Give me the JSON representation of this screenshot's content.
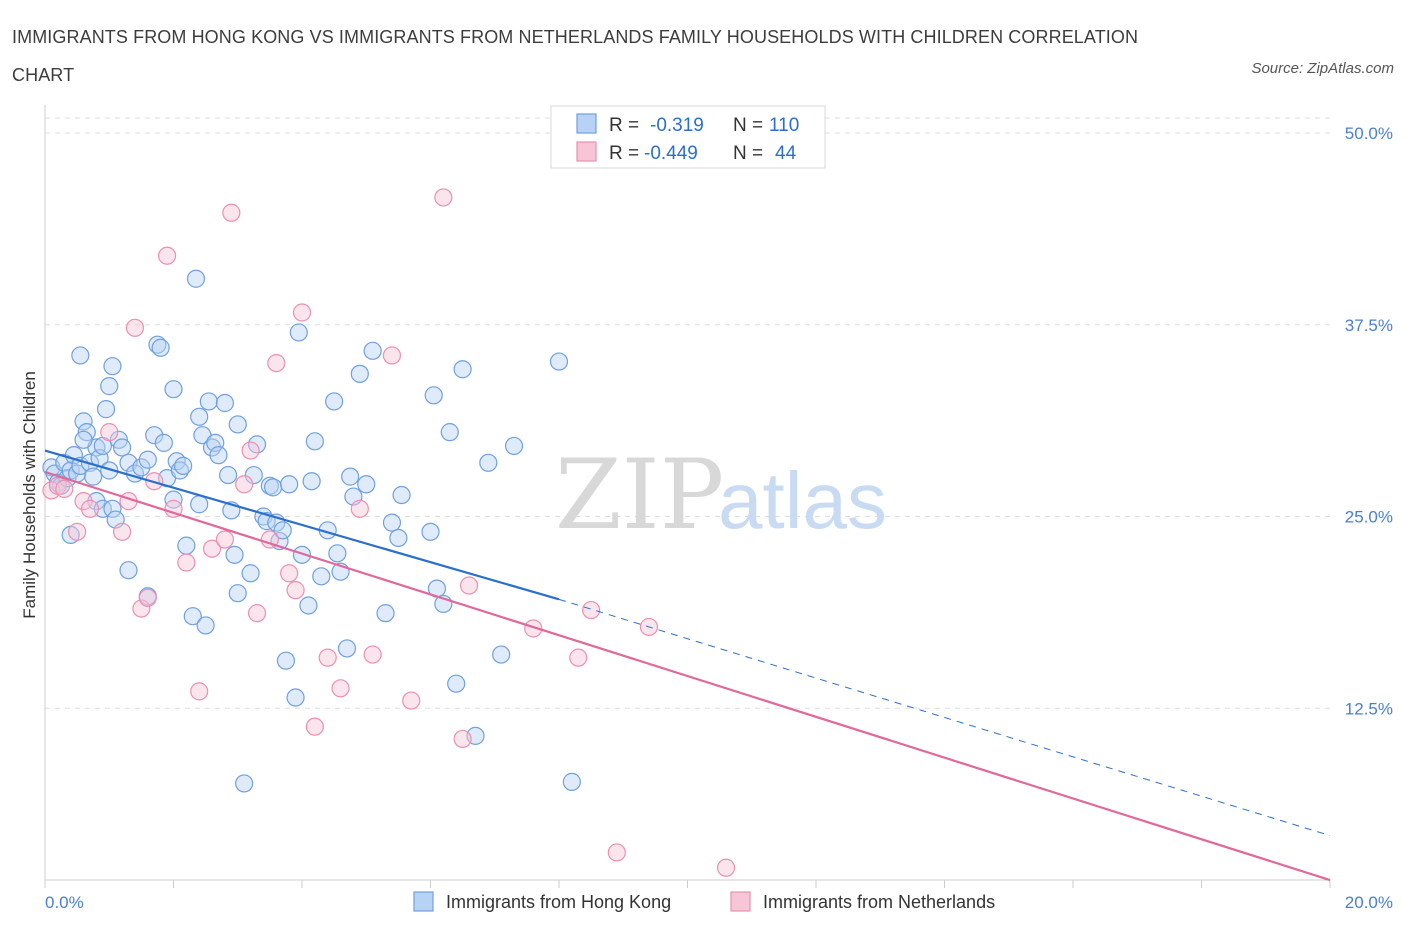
{
  "title": "IMMIGRANTS FROM HONG KONG VS IMMIGRANTS FROM NETHERLANDS FAMILY HOUSEHOLDS WITH CHILDREN CORRELATION CHART",
  "source": "Source: ZipAtlas.com",
  "watermark": {
    "zip": "ZIP",
    "atlas": "atlas"
  },
  "colors": {
    "blue": "#6fa0e0",
    "blue_fill": "#b8d2f5",
    "blue_line": "#2b6fcd",
    "pink": "#ec8fb0",
    "pink_fill": "#f7c6d6",
    "pink_line": "#e0689a",
    "axis_text": "#4a7fd0",
    "grid": "#dddddd"
  },
  "stats": [
    {
      "r_label": "R =",
      "r": "-0.319",
      "n_label": "N =",
      "n": "110"
    },
    {
      "r_label": "R =",
      "r": "-0.449",
      "n_label": "N =",
      "n": "44"
    }
  ],
  "chart_data": {
    "type": "scatter",
    "xlabel": "",
    "ylabel": "Family Households with Children",
    "xlim": [
      0,
      20
    ],
    "ylim": [
      0,
      50
    ],
    "x_tick_labels": [
      "0.0%",
      "20.0%"
    ],
    "y_ticks": [
      12.5,
      25.0,
      37.5,
      50.0
    ],
    "y_tick_labels": [
      "12.5%",
      "25.0%",
      "37.5%",
      "50.0%"
    ],
    "grid": true,
    "legend_position": "bottom-center",
    "series": [
      {
        "name": "Immigrants from Hong Kong",
        "color": "#6fa0e0",
        "trend": {
          "x0": 0,
          "y0": 29.3,
          "x1": 8.0,
          "y1": 19.6,
          "x_dash_end": 20.0,
          "y_dash_end": 4.2
        },
        "points": [
          [
            0.1,
            28.2
          ],
          [
            0.15,
            27.8
          ],
          [
            0.2,
            27.2
          ],
          [
            0.25,
            27.0
          ],
          [
            0.3,
            28.5
          ],
          [
            0.35,
            27.5
          ],
          [
            0.4,
            28.0
          ],
          [
            0.45,
            29.0
          ],
          [
            0.5,
            27.8
          ],
          [
            0.55,
            28.3
          ],
          [
            0.6,
            31.2
          ],
          [
            0.65,
            30.5
          ],
          [
            0.7,
            28.5
          ],
          [
            0.75,
            27.6
          ],
          [
            0.8,
            29.5
          ],
          [
            0.85,
            28.8
          ],
          [
            0.9,
            29.6
          ],
          [
            0.95,
            32.0
          ],
          [
            1.0,
            33.5
          ],
          [
            1.05,
            34.8
          ],
          [
            0.4,
            23.8
          ],
          [
            0.8,
            26.0
          ],
          [
            0.9,
            25.5
          ],
          [
            1.0,
            28.0
          ],
          [
            1.05,
            25.5
          ],
          [
            1.1,
            24.8
          ],
          [
            1.15,
            30.0
          ],
          [
            1.2,
            29.5
          ],
          [
            1.3,
            28.5
          ],
          [
            1.4,
            27.8
          ],
          [
            1.5,
            28.2
          ],
          [
            1.6,
            28.7
          ],
          [
            1.7,
            30.3
          ],
          [
            1.75,
            36.2
          ],
          [
            1.8,
            36.0
          ],
          [
            1.85,
            29.8
          ],
          [
            1.9,
            27.5
          ],
          [
            2.0,
            33.3
          ],
          [
            2.05,
            28.6
          ],
          [
            2.1,
            28.0
          ],
          [
            2.15,
            28.3
          ],
          [
            2.2,
            23.1
          ],
          [
            2.3,
            18.5
          ],
          [
            2.35,
            40.5
          ],
          [
            2.4,
            31.5
          ],
          [
            2.45,
            30.3
          ],
          [
            2.5,
            17.9
          ],
          [
            2.55,
            32.5
          ],
          [
            2.6,
            29.5
          ],
          [
            2.65,
            29.8
          ],
          [
            2.7,
            29.0
          ],
          [
            2.8,
            32.4
          ],
          [
            2.85,
            27.7
          ],
          [
            2.9,
            25.4
          ],
          [
            2.95,
            22.5
          ],
          [
            3.0,
            20.0
          ],
          [
            3.1,
            7.6
          ],
          [
            3.2,
            21.3
          ],
          [
            3.25,
            27.7
          ],
          [
            3.3,
            29.7
          ],
          [
            3.4,
            25.0
          ],
          [
            3.45,
            24.7
          ],
          [
            3.5,
            27.0
          ],
          [
            3.55,
            26.9
          ],
          [
            3.6,
            24.6
          ],
          [
            3.65,
            23.4
          ],
          [
            3.7,
            24.1
          ],
          [
            3.75,
            15.6
          ],
          [
            3.8,
            27.1
          ],
          [
            3.9,
            13.2
          ],
          [
            3.95,
            37.0
          ],
          [
            4.0,
            22.5
          ],
          [
            4.1,
            19.2
          ],
          [
            4.15,
            27.3
          ],
          [
            4.2,
            29.9
          ],
          [
            4.3,
            21.1
          ],
          [
            4.4,
            24.1
          ],
          [
            4.5,
            32.5
          ],
          [
            4.55,
            22.6
          ],
          [
            4.6,
            21.4
          ],
          [
            4.7,
            16.4
          ],
          [
            4.75,
            27.6
          ],
          [
            4.8,
            26.3
          ],
          [
            4.9,
            34.3
          ],
          [
            5.0,
            27.1
          ],
          [
            5.1,
            35.8
          ],
          [
            5.3,
            18.7
          ],
          [
            5.4,
            24.6
          ],
          [
            5.5,
            23.6
          ],
          [
            5.55,
            26.4
          ],
          [
            6.0,
            24.0
          ],
          [
            6.05,
            32.9
          ],
          [
            6.1,
            20.3
          ],
          [
            6.2,
            19.3
          ],
          [
            6.3,
            30.5
          ],
          [
            6.4,
            14.1
          ],
          [
            6.5,
            34.6
          ],
          [
            6.7,
            10.7
          ],
          [
            6.9,
            28.5
          ],
          [
            7.1,
            16.0
          ],
          [
            7.3,
            29.6
          ],
          [
            8.0,
            35.1
          ],
          [
            8.2,
            7.7
          ],
          [
            0.55,
            35.5
          ],
          [
            1.3,
            21.5
          ],
          [
            2.0,
            26.1
          ],
          [
            1.6,
            19.8
          ],
          [
            0.6,
            30.0
          ],
          [
            2.4,
            25.8
          ],
          [
            3.0,
            31.0
          ]
        ]
      },
      {
        "name": "Immigrants from Netherlands",
        "color": "#ec8fb0",
        "trend": {
          "x0": 0,
          "y0": 27.9,
          "x1": 20.0,
          "y1": 1.3
        },
        "points": [
          [
            0.1,
            26.7
          ],
          [
            0.2,
            27.0
          ],
          [
            0.3,
            26.8
          ],
          [
            0.5,
            24.0
          ],
          [
            0.6,
            26.0
          ],
          [
            0.7,
            25.5
          ],
          [
            1.0,
            30.5
          ],
          [
            1.2,
            24.0
          ],
          [
            1.3,
            26.0
          ],
          [
            1.4,
            37.3
          ],
          [
            1.5,
            19.0
          ],
          [
            1.6,
            19.7
          ],
          [
            1.7,
            27.3
          ],
          [
            1.9,
            42.0
          ],
          [
            2.0,
            25.5
          ],
          [
            2.2,
            22.0
          ],
          [
            2.4,
            13.6
          ],
          [
            2.6,
            22.9
          ],
          [
            2.8,
            23.5
          ],
          [
            2.9,
            44.8
          ],
          [
            3.1,
            27.1
          ],
          [
            3.2,
            29.3
          ],
          [
            3.3,
            18.7
          ],
          [
            3.5,
            23.5
          ],
          [
            3.6,
            35.0
          ],
          [
            3.8,
            21.3
          ],
          [
            3.9,
            20.2
          ],
          [
            4.0,
            38.3
          ],
          [
            4.2,
            11.3
          ],
          [
            4.4,
            15.8
          ],
          [
            4.6,
            13.8
          ],
          [
            4.9,
            25.5
          ],
          [
            5.1,
            16.0
          ],
          [
            5.4,
            35.5
          ],
          [
            5.7,
            13.0
          ],
          [
            6.2,
            45.8
          ],
          [
            6.5,
            10.5
          ],
          [
            6.6,
            20.5
          ],
          [
            7.6,
            17.7
          ],
          [
            8.3,
            15.8
          ],
          [
            8.5,
            18.9
          ],
          [
            8.9,
            3.1
          ],
          [
            9.4,
            17.8
          ],
          [
            10.6,
            2.1
          ]
        ]
      }
    ]
  },
  "legend": [
    {
      "label": "Immigrants from Hong Kong"
    },
    {
      "label": "Immigrants from Netherlands"
    }
  ]
}
